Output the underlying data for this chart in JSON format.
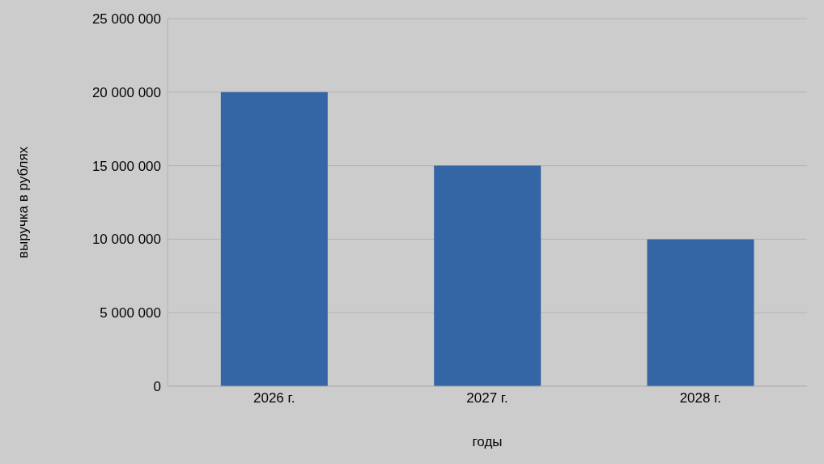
{
  "chart_data": {
    "type": "bar",
    "xlabel": "годы",
    "ylabel": "выручка в рублях",
    "categories": [
      "2026 г.",
      "2027 г.",
      "2028 г."
    ],
    "values": [
      20000000,
      15000000,
      10000000
    ],
    "color": "#3465a4",
    "ylim": [
      0,
      25000000
    ],
    "yticks": [
      {
        "value": 0,
        "label": "0"
      },
      {
        "value": 5000000,
        "label": "5 000 000"
      },
      {
        "value": 10000000,
        "label": "10 000 000"
      },
      {
        "value": 15000000,
        "label": "15 000 000"
      },
      {
        "value": 20000000,
        "label": "20 000 000"
      },
      {
        "value": 25000000,
        "label": "25 000 000"
      }
    ],
    "grid": "y",
    "legend": false
  }
}
